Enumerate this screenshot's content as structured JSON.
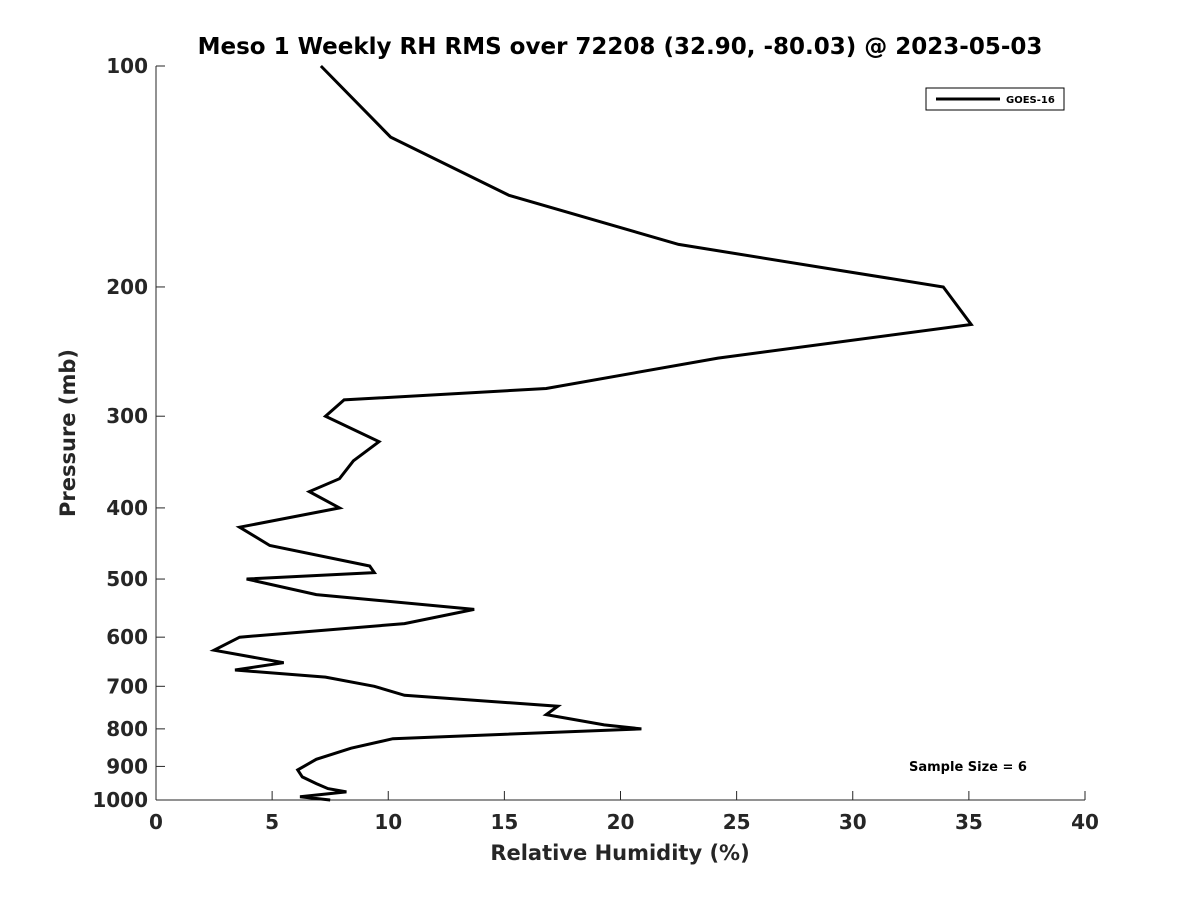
{
  "chart_data": {
    "type": "line",
    "title": "Meso 1 Weekly RH RMS over 72208 (32.90, -80.03) @ 2023-05-03",
    "xlabel": "Relative Humidity (%)",
    "ylabel": "Pressure (mb)",
    "xlim": [
      0,
      40
    ],
    "ylim": [
      1000,
      100
    ],
    "y_scale": "log",
    "x_ticks": [
      0,
      5,
      10,
      15,
      20,
      25,
      30,
      35,
      40
    ],
    "y_ticks": [
      100,
      200,
      300,
      400,
      500,
      600,
      700,
      800,
      900,
      1000
    ],
    "grid": false,
    "legend": {
      "position": "top-right",
      "entries": [
        "GOES-16"
      ]
    },
    "annotation": "Sample Size = 6",
    "series": [
      {
        "name": "GOES-16",
        "color": "#000000",
        "points": [
          [
            7.1,
            100
          ],
          [
            10.1,
            125
          ],
          [
            15.2,
            150
          ],
          [
            22.5,
            175
          ],
          [
            29.5,
            190
          ],
          [
            33.9,
            200
          ],
          [
            35.1,
            225
          ],
          [
            24.2,
            250
          ],
          [
            16.8,
            275
          ],
          [
            8.1,
            285
          ],
          [
            7.3,
            300
          ],
          [
            9.6,
            325
          ],
          [
            8.5,
            345
          ],
          [
            7.9,
            365
          ],
          [
            6.6,
            380
          ],
          [
            7.9,
            400
          ],
          [
            3.6,
            425
          ],
          [
            4.9,
            450
          ],
          [
            9.2,
            480
          ],
          [
            9.4,
            490
          ],
          [
            3.9,
            500
          ],
          [
            6.9,
            525
          ],
          [
            13.7,
            550
          ],
          [
            10.7,
            575
          ],
          [
            3.6,
            600
          ],
          [
            2.5,
            625
          ],
          [
            5.5,
            650
          ],
          [
            3.4,
            665
          ],
          [
            7.3,
            680
          ],
          [
            9.4,
            700
          ],
          [
            10.7,
            720
          ],
          [
            17.3,
            745
          ],
          [
            16.8,
            765
          ],
          [
            19.3,
            790
          ],
          [
            20.9,
            800
          ],
          [
            10.2,
            825
          ],
          [
            8.4,
            850
          ],
          [
            6.9,
            880
          ],
          [
            6.1,
            910
          ],
          [
            6.3,
            930
          ],
          [
            6.9,
            950
          ],
          [
            7.4,
            965
          ],
          [
            8.2,
            975
          ],
          [
            6.2,
            990
          ],
          [
            7.5,
            1000
          ]
        ]
      }
    ]
  }
}
